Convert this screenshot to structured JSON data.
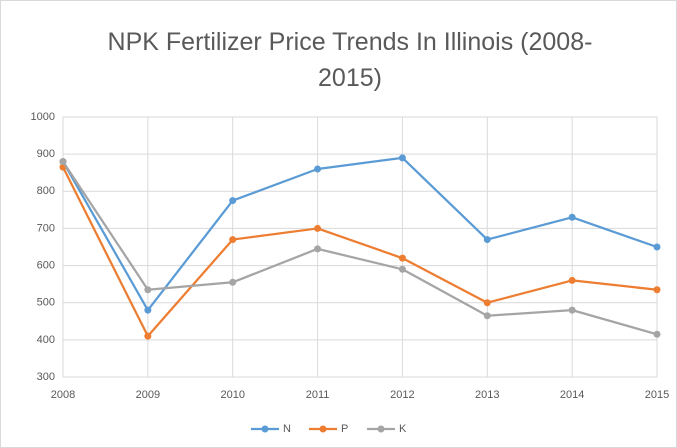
{
  "chart_data": {
    "type": "line",
    "title": "NPK Fertilizer Price Trends In Illinois (2008-2015)",
    "x": [
      2008,
      2009,
      2010,
      2011,
      2012,
      2013,
      2014,
      2015
    ],
    "xlim": [
      2008,
      2015
    ],
    "xticks": [
      2008,
      2009,
      2010,
      2011,
      2012,
      2013,
      2014,
      2015
    ],
    "ylim": [
      300,
      1000
    ],
    "yticks": [
      300,
      400,
      500,
      600,
      700,
      800,
      900,
      1000
    ],
    "grid": true,
    "legend": "bottom",
    "series": [
      {
        "name": "N",
        "color": "#5b9bd5",
        "values": [
          880,
          480,
          775,
          860,
          890,
          670,
          730,
          650
        ]
      },
      {
        "name": "P",
        "color": "#ed7d31",
        "values": [
          865,
          410,
          670,
          700,
          620,
          500,
          560,
          535
        ]
      },
      {
        "name": "K",
        "color": "#a5a5a5",
        "values": [
          880,
          535,
          555,
          645,
          590,
          465,
          480,
          415
        ]
      }
    ]
  }
}
